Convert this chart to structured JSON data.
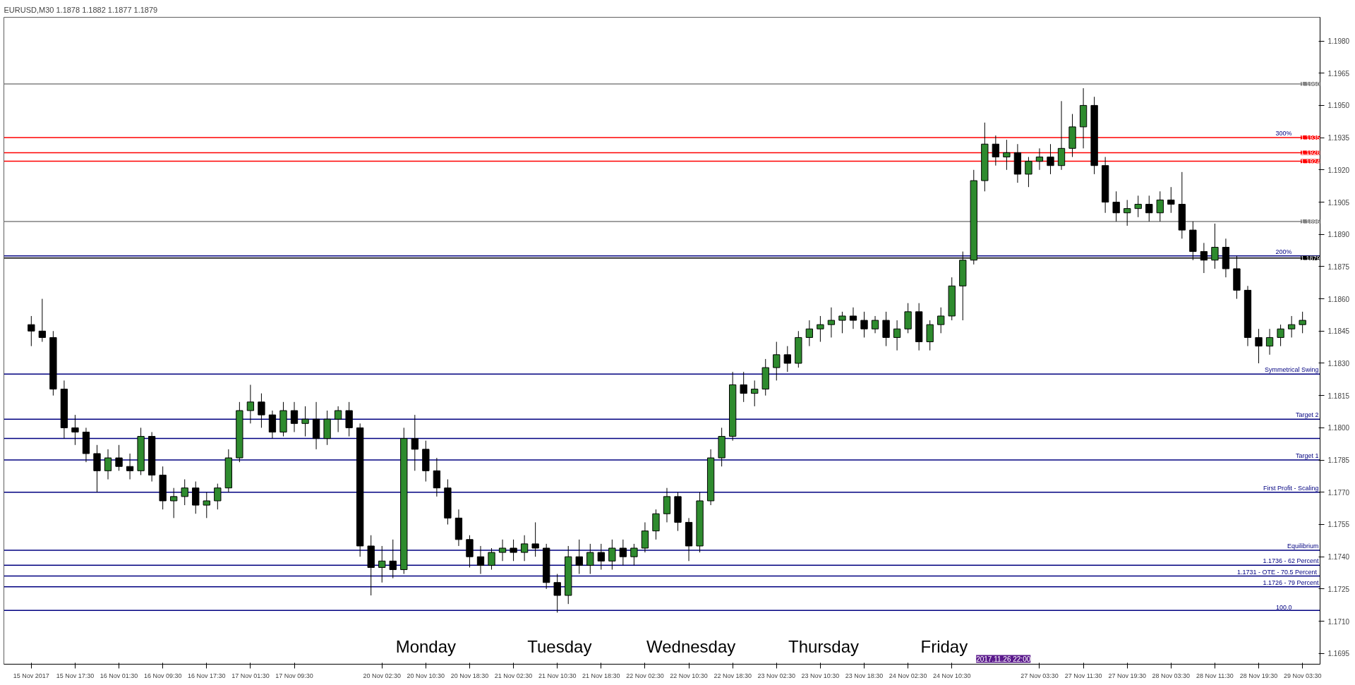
{
  "chart_data": {
    "type": "candlestick",
    "title": "EURUSD,M30  1.1878 1.1882 1.1877 1.1879",
    "categories": [
      "15 Nov 2017",
      null,
      null,
      null,
      "15 Nov 17:30",
      null,
      null,
      null,
      "16 Nov 01:30",
      null,
      null,
      null,
      "16 Nov 09:30",
      null,
      null,
      null,
      "16 Nov 17:30",
      null,
      null,
      null,
      "17 Nov 01:30",
      null,
      null,
      null,
      "17 Nov 09:30",
      null,
      null,
      null,
      null,
      null,
      null,
      null,
      "20 Nov 02:30",
      null,
      null,
      null,
      "20 Nov 10:30",
      null,
      null,
      null,
      "20 Nov 18:30",
      null,
      null,
      null,
      "21 Nov 02:30",
      null,
      null,
      null,
      "21 Nov 10:30",
      null,
      null,
      null,
      "21 Nov 18:30",
      null,
      null,
      null,
      "22 Nov 02:30",
      null,
      null,
      null,
      "22 Nov 10:30",
      null,
      null,
      null,
      "22 Nov 18:30",
      null,
      null,
      null,
      "23 Nov 02:30",
      null,
      null,
      null,
      "23 Nov 10:30",
      null,
      null,
      null,
      "23 Nov 18:30",
      null,
      null,
      null,
      "24 Nov 02:30",
      null,
      null,
      null,
      "24 Nov 10:30",
      null,
      null,
      null,
      null,
      null,
      null,
      null,
      "27 Nov 03:30",
      null,
      null,
      null,
      "27 Nov 11:30",
      null,
      null,
      null,
      "27 Nov 19:30",
      null,
      null,
      null,
      "28 Nov 03:30",
      null,
      null,
      null,
      "28 Nov 11:30",
      null,
      null,
      null,
      "28 Nov 19:30",
      null,
      null,
      null,
      "29 Nov 03:30"
    ],
    "ohlc": [
      [
        1.1848,
        1.1852,
        1.1838,
        1.1845
      ],
      [
        1.1845,
        1.186,
        1.184,
        1.1842
      ],
      [
        1.1842,
        1.1845,
        1.1815,
        1.1818
      ],
      [
        1.1818,
        1.1822,
        1.1795,
        1.18
      ],
      [
        1.18,
        1.1806,
        1.1792,
        1.1798
      ],
      [
        1.1798,
        1.18,
        1.1784,
        1.1788
      ],
      [
        1.1788,
        1.1792,
        1.177,
        1.178
      ],
      [
        1.178,
        1.179,
        1.1776,
        1.1786
      ],
      [
        1.1786,
        1.1792,
        1.178,
        1.1782
      ],
      [
        1.1782,
        1.1788,
        1.1776,
        1.178
      ],
      [
        1.178,
        1.18,
        1.1778,
        1.1796
      ],
      [
        1.1796,
        1.1798,
        1.1775,
        1.1778
      ],
      [
        1.1778,
        1.1782,
        1.1762,
        1.1766
      ],
      [
        1.1766,
        1.1772,
        1.1758,
        1.1768
      ],
      [
        1.1768,
        1.1776,
        1.1764,
        1.1772
      ],
      [
        1.1772,
        1.1775,
        1.176,
        1.1764
      ],
      [
        1.1764,
        1.177,
        1.1758,
        1.1766
      ],
      [
        1.1766,
        1.1774,
        1.1762,
        1.1772
      ],
      [
        1.1772,
        1.179,
        1.177,
        1.1786
      ],
      [
        1.1786,
        1.1812,
        1.1784,
        1.1808
      ],
      [
        1.1808,
        1.182,
        1.1802,
        1.1812
      ],
      [
        1.1812,
        1.1816,
        1.18,
        1.1806
      ],
      [
        1.1806,
        1.1808,
        1.1795,
        1.1798
      ],
      [
        1.1798,
        1.1812,
        1.1796,
        1.1808
      ],
      [
        1.1808,
        1.1812,
        1.1798,
        1.1802
      ],
      [
        1.1802,
        1.181,
        1.1796,
        1.1804
      ],
      [
        1.1804,
        1.1812,
        1.179,
        1.1795
      ],
      [
        1.1795,
        1.1808,
        1.1792,
        1.1804
      ],
      [
        1.1804,
        1.181,
        1.1798,
        1.1808
      ],
      [
        1.1808,
        1.1812,
        1.1796,
        1.18
      ],
      [
        1.18,
        1.1802,
        1.174,
        1.1745
      ],
      [
        1.1745,
        1.175,
        1.1722,
        1.1735
      ],
      [
        1.1735,
        1.1745,
        1.1728,
        1.1738
      ],
      [
        1.1738,
        1.1748,
        1.173,
        1.1734
      ],
      [
        1.1734,
        1.18,
        1.1732,
        1.1795
      ],
      [
        1.1795,
        1.1806,
        1.178,
        1.179
      ],
      [
        1.179,
        1.1794,
        1.1775,
        1.178
      ],
      [
        1.178,
        1.1786,
        1.1768,
        1.1772
      ],
      [
        1.1772,
        1.1776,
        1.1755,
        1.1758
      ],
      [
        1.1758,
        1.1762,
        1.1745,
        1.1748
      ],
      [
        1.1748,
        1.175,
        1.1735,
        1.174
      ],
      [
        1.174,
        1.1745,
        1.1732,
        1.1736
      ],
      [
        1.1736,
        1.1744,
        1.1734,
        1.1742
      ],
      [
        1.1742,
        1.1748,
        1.1738,
        1.1744
      ],
      [
        1.1744,
        1.1748,
        1.1738,
        1.1742
      ],
      [
        1.1742,
        1.175,
        1.1738,
        1.1746
      ],
      [
        1.1746,
        1.1756,
        1.174,
        1.1744
      ],
      [
        1.1744,
        1.1746,
        1.1725,
        1.1728
      ],
      [
        1.1728,
        1.1732,
        1.1714,
        1.1722
      ],
      [
        1.1722,
        1.1745,
        1.1718,
        1.174
      ],
      [
        1.174,
        1.1748,
        1.1732,
        1.1736
      ],
      [
        1.1736,
        1.1746,
        1.1732,
        1.1742
      ],
      [
        1.1742,
        1.1746,
        1.1734,
        1.1738
      ],
      [
        1.1738,
        1.1748,
        1.1734,
        1.1744
      ],
      [
        1.1744,
        1.1748,
        1.1736,
        1.174
      ],
      [
        1.174,
        1.1746,
        1.1736,
        1.1744
      ],
      [
        1.1744,
        1.1756,
        1.1742,
        1.1752
      ],
      [
        1.1752,
        1.1762,
        1.1748,
        1.176
      ],
      [
        1.176,
        1.1772,
        1.1756,
        1.1768
      ],
      [
        1.1768,
        1.177,
        1.1752,
        1.1756
      ],
      [
        1.1756,
        1.1758,
        1.1738,
        1.1745
      ],
      [
        1.1745,
        1.177,
        1.1742,
        1.1766
      ],
      [
        1.1766,
        1.179,
        1.1764,
        1.1786
      ],
      [
        1.1786,
        1.18,
        1.1782,
        1.1796
      ],
      [
        1.1796,
        1.1826,
        1.1794,
        1.182
      ],
      [
        1.182,
        1.1826,
        1.1812,
        1.1816
      ],
      [
        1.1816,
        1.1822,
        1.181,
        1.1818
      ],
      [
        1.1818,
        1.1832,
        1.1815,
        1.1828
      ],
      [
        1.1828,
        1.184,
        1.1822,
        1.1834
      ],
      [
        1.1834,
        1.1838,
        1.1826,
        1.183
      ],
      [
        1.183,
        1.1845,
        1.1828,
        1.1842
      ],
      [
        1.1842,
        1.185,
        1.1838,
        1.1846
      ],
      [
        1.1846,
        1.1852,
        1.184,
        1.1848
      ],
      [
        1.1848,
        1.1856,
        1.1842,
        1.185
      ],
      [
        1.185,
        1.1854,
        1.1844,
        1.1852
      ],
      [
        1.1852,
        1.1856,
        1.1846,
        1.185
      ],
      [
        1.185,
        1.1854,
        1.1842,
        1.1846
      ],
      [
        1.1846,
        1.1852,
        1.1844,
        1.185
      ],
      [
        1.185,
        1.1854,
        1.1838,
        1.1842
      ],
      [
        1.1842,
        1.185,
        1.1836,
        1.1846
      ],
      [
        1.1846,
        1.1858,
        1.1844,
        1.1854
      ],
      [
        1.1854,
        1.1858,
        1.1836,
        1.184
      ],
      [
        1.184,
        1.185,
        1.1836,
        1.1848
      ],
      [
        1.1848,
        1.1856,
        1.1844,
        1.1852
      ],
      [
        1.1852,
        1.187,
        1.185,
        1.1866
      ],
      [
        1.1866,
        1.1882,
        1.185,
        1.1878
      ],
      [
        1.1878,
        1.192,
        1.1876,
        1.1915
      ],
      [
        1.1915,
        1.1942,
        1.191,
        1.1932
      ],
      [
        1.1932,
        1.1936,
        1.1922,
        1.1926
      ],
      [
        1.1926,
        1.1934,
        1.192,
        1.1928
      ],
      [
        1.1928,
        1.1932,
        1.1914,
        1.1918
      ],
      [
        1.1918,
        1.1926,
        1.1912,
        1.1924
      ],
      [
        1.1924,
        1.193,
        1.192,
        1.1926
      ],
      [
        1.1926,
        1.1932,
        1.1918,
        1.1922
      ],
      [
        1.1922,
        1.1952,
        1.192,
        1.193
      ],
      [
        1.193,
        1.1946,
        1.1926,
        1.194
      ],
      [
        1.194,
        1.1958,
        1.193,
        1.195
      ],
      [
        1.195,
        1.1954,
        1.1918,
        1.1922
      ],
      [
        1.1922,
        1.1926,
        1.19,
        1.1905
      ],
      [
        1.1905,
        1.191,
        1.1896,
        1.19
      ],
      [
        1.19,
        1.1906,
        1.1894,
        1.1902
      ],
      [
        1.1902,
        1.1908,
        1.1898,
        1.1904
      ],
      [
        1.1904,
        1.1908,
        1.1896,
        1.19
      ],
      [
        1.19,
        1.191,
        1.1896,
        1.1906
      ],
      [
        1.1906,
        1.1912,
        1.19,
        1.1904
      ],
      [
        1.1904,
        1.1919,
        1.1888,
        1.1892
      ],
      [
        1.1892,
        1.1896,
        1.1878,
        1.1882
      ],
      [
        1.1882,
        1.1886,
        1.1872,
        1.1878
      ],
      [
        1.1878,
        1.1895,
        1.1874,
        1.1884
      ],
      [
        1.1884,
        1.1888,
        1.187,
        1.1874
      ],
      [
        1.1874,
        1.188,
        1.186,
        1.1864
      ],
      [
        1.1864,
        1.1866,
        1.1838,
        1.1842
      ],
      [
        1.1842,
        1.1846,
        1.183,
        1.1838
      ],
      [
        1.1838,
        1.1846,
        1.1834,
        1.1842
      ],
      [
        1.1842,
        1.1848,
        1.1838,
        1.1846
      ],
      [
        1.1846,
        1.1852,
        1.1842,
        1.1848
      ],
      [
        1.1848,
        1.1854,
        1.1844,
        1.185
      ]
    ],
    "ylim": [
      1.169,
      1.1991
    ],
    "yticks": [
      {
        "value": 1.1695,
        "label": "1.1695"
      },
      {
        "value": 1.171,
        "label": "1.1710"
      },
      {
        "value": 1.1725,
        "label": "1.1725"
      },
      {
        "value": 1.174,
        "label": "1.1740"
      },
      {
        "value": 1.1755,
        "label": "1.1755"
      },
      {
        "value": 1.177,
        "label": "1.1770"
      },
      {
        "value": 1.1785,
        "label": "1.1785"
      },
      {
        "value": 1.18,
        "label": "1.1800"
      },
      {
        "value": 1.1815,
        "label": "1.1815"
      },
      {
        "value": 1.183,
        "label": "1.1830"
      },
      {
        "value": 1.1845,
        "label": "1.1845"
      },
      {
        "value": 1.186,
        "label": "1.1860"
      },
      {
        "value": 1.1875,
        "label": "1.1875"
      },
      {
        "value": 1.189,
        "label": "1.1890"
      },
      {
        "value": 1.1905,
        "label": "1.1905"
      },
      {
        "value": 1.192,
        "label": "1.1920"
      },
      {
        "value": 1.1935,
        "label": "1.1935"
      },
      {
        "value": 1.195,
        "label": "1.1950"
      },
      {
        "value": 1.1965,
        "label": "1.1965"
      },
      {
        "value": 1.198,
        "label": "1.1980"
      }
    ],
    "ref_lines": [
      {
        "axis": "y",
        "value": 1.196,
        "label": "1.1960",
        "color": "#808080"
      },
      {
        "axis": "y",
        "value": 1.1935,
        "label": "1.1935",
        "color": "#ff0000"
      },
      {
        "axis": "y",
        "value": 1.1928,
        "label": "1.1928",
        "color": "#ff0000"
      },
      {
        "axis": "y",
        "value": 1.1924,
        "label": "1.1924",
        "color": "#ff0000"
      },
      {
        "axis": "y",
        "value": 1.1896,
        "label": "1.1896",
        "color": "#808080"
      },
      {
        "axis": "y",
        "value": 1.1879,
        "label": "1.1879",
        "color": "#000000"
      },
      {
        "axis": "y",
        "value": 1.188,
        "color": "#000080"
      },
      {
        "axis": "y",
        "value": 1.1825,
        "label": "Symmetrical Swing",
        "color": "#000080"
      },
      {
        "axis": "y",
        "value": 1.1804,
        "label": "Target 2",
        "color": "#000080"
      },
      {
        "axis": "y",
        "value": 1.1795,
        "color": "#000080"
      },
      {
        "axis": "y",
        "value": 1.1785,
        "label": "Target 1",
        "color": "#000080"
      },
      {
        "axis": "y",
        "value": 1.177,
        "label": "First Profit - Scaling",
        "color": "#000080"
      },
      {
        "axis": "y",
        "value": 1.1743,
        "label": "Equilibrium",
        "color": "#000080"
      },
      {
        "axis": "y",
        "value": 1.1736,
        "label": "1.1736 - 62 Percent",
        "color": "#000080"
      },
      {
        "axis": "y",
        "value": 1.1731,
        "label": "1.1731 - OTE  - 70.5 Percent",
        "color": "#000080"
      },
      {
        "axis": "y",
        "value": 1.1726,
        "label": "1.1726 - 79 Percent",
        "color": "#000080"
      },
      {
        "axis": "y",
        "value": 1.1715,
        "color": "#000080"
      }
    ],
    "annotations": [
      "Monday",
      "Tuesday",
      "Wednesday",
      "Thursday",
      "Friday",
      "2017.11.26 22:00",
      {
        "text": "300%",
        "y": 1.1935
      },
      {
        "text": "200%",
        "y": 1.188
      },
      {
        "text": "100.0",
        "y": 1.1715
      }
    ],
    "grid": false
  }
}
